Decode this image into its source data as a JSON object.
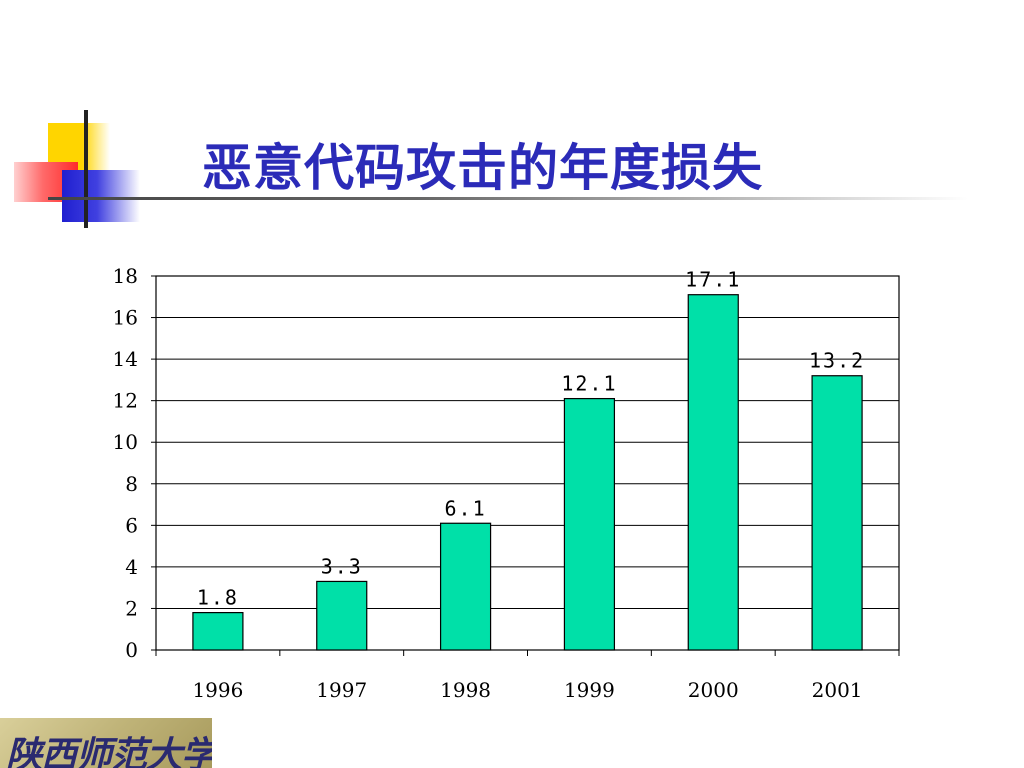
{
  "slide": {
    "title": "恶意代码攻击的年度损失",
    "logo_text": "陕西师范大学"
  },
  "colors": {
    "title": "#2b2bb8",
    "bar_fill": "#00e0a8",
    "bar_stroke": "#000000"
  },
  "chart_data": {
    "type": "bar",
    "categories": [
      "1996",
      "1997",
      "1998",
      "1999",
      "2000",
      "2001"
    ],
    "values": [
      1.8,
      3.3,
      6.1,
      12.1,
      17.1,
      13.2
    ],
    "data_labels": [
      "1.8",
      "3.3",
      "6.1",
      "12.1",
      "17.1",
      "13.2"
    ],
    "ylim": [
      0,
      18
    ],
    "yticks": [
      0,
      2,
      4,
      6,
      8,
      10,
      12,
      14,
      16,
      18
    ],
    "grid": true,
    "title": "",
    "xlabel": "",
    "ylabel": ""
  }
}
